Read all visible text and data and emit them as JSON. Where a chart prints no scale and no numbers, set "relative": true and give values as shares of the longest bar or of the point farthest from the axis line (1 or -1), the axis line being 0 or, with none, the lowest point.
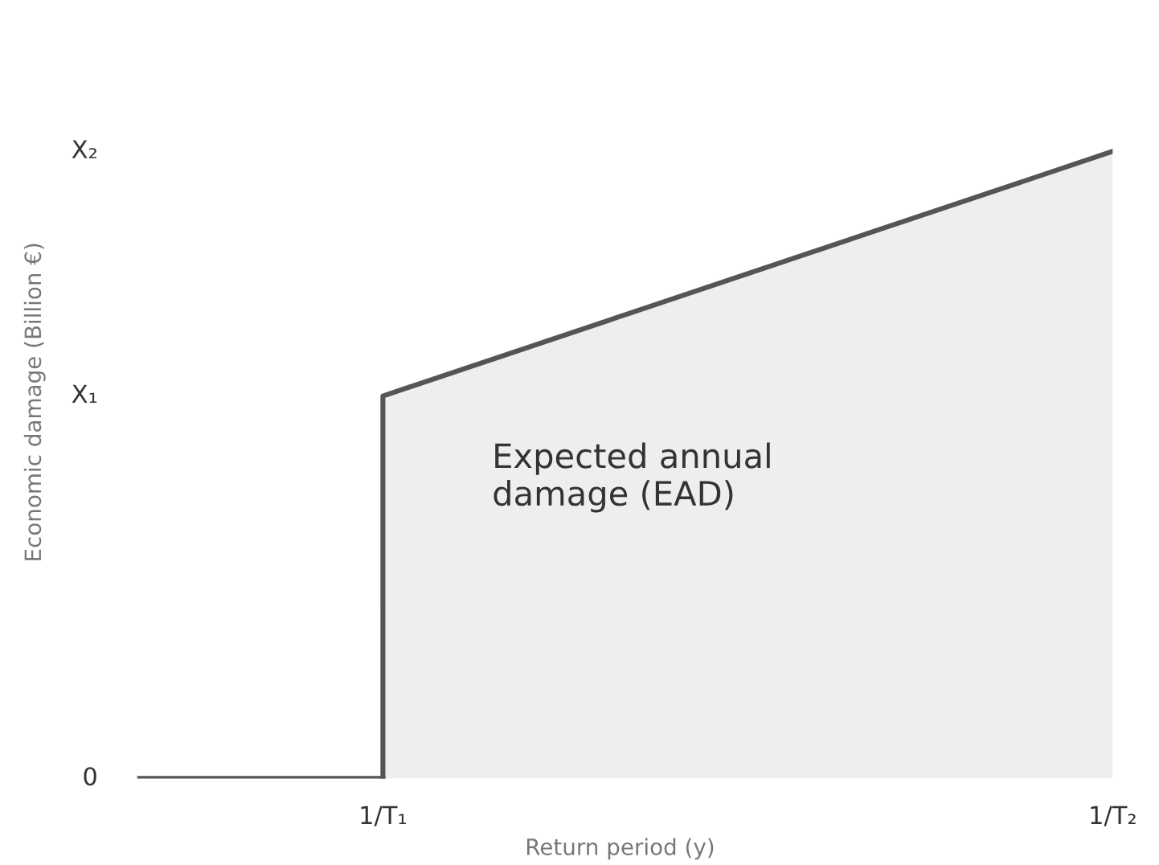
{
  "chart_data": {
    "type": "area",
    "relative": true,
    "xlabel": "Return period (y)",
    "ylabel": "Economic damage (Billion €)",
    "categories": [
      null,
      "1/T₁",
      null,
      null,
      "1/T₂"
    ],
    "series": [
      {
        "type": "line",
        "color": "#555555",
        "values": [
          0,
          0,
          null,
          null,
          null
        ]
      },
      {
        "color": "#555555",
        "values": [
          null,
          0.61,
          0.74,
          0.87,
          1
        ]
      }
    ],
    "annotations": [
      "0",
      "X₁",
      "X₂",
      "Expected annual\ndamage (EAD)"
    ]
  }
}
